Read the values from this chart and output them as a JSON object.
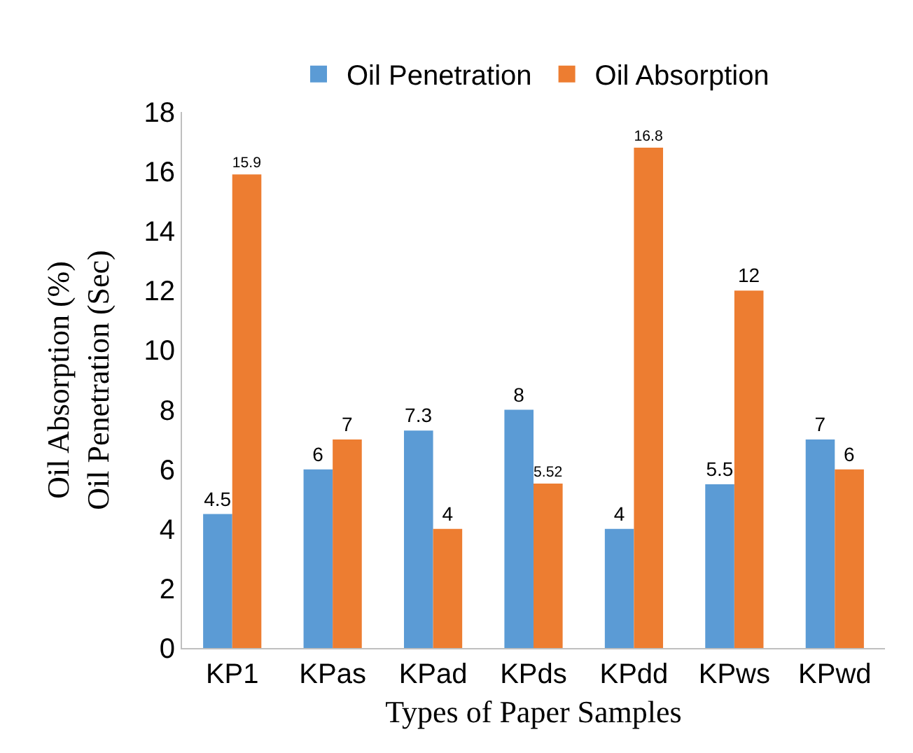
{
  "chart_data": {
    "type": "bar",
    "xlabel": "Types of Paper Samples",
    "ylabel": "Oil Absorption (%)\nOil Penetration (Sec)",
    "categories": [
      "KP1",
      "KPas",
      "KPad",
      "KPds",
      "KPdd",
      "KPws",
      "KPwd"
    ],
    "series": [
      {
        "name": "Oil Penetration",
        "color": "#5b9bd5",
        "values": [
          4.5,
          6,
          7.3,
          8,
          4,
          5.5,
          7
        ]
      },
      {
        "name": "Oil Absorption",
        "color": "#ed7d31",
        "values": [
          15.9,
          7,
          4,
          5.52,
          16.8,
          12,
          6
        ]
      }
    ],
    "ylim": [
      0,
      18
    ],
    "yticks": [
      0,
      2,
      4,
      6,
      8,
      10,
      12,
      14,
      16,
      18
    ],
    "grid": false,
    "legend": "top",
    "data_labels": true
  }
}
